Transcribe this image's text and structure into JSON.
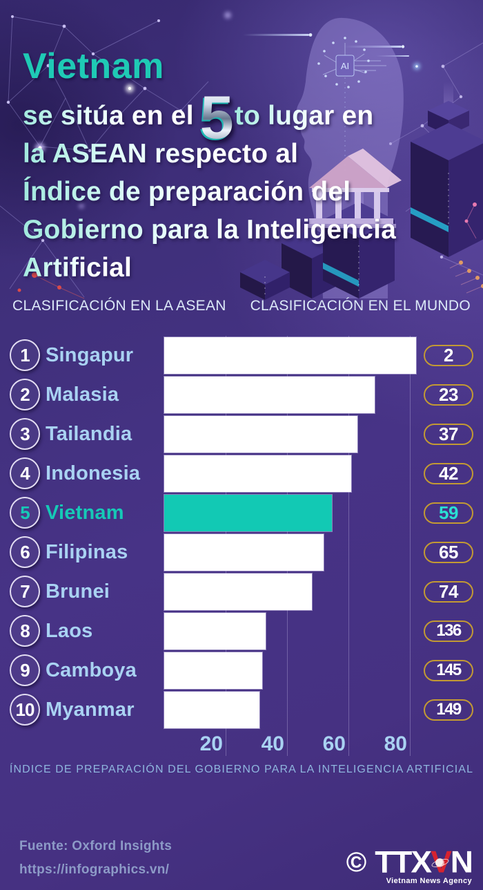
{
  "header": {
    "highlight": "Vietnam",
    "line1_pre": "se sitúa en el",
    "big_number": "5",
    "line1_post": "to lugar en",
    "line2": "la ASEAN respecto al",
    "line3": "Índice de preparación del",
    "line4": "Gobierno para la Inteligencia",
    "line5": "Artificial",
    "ai_chip_label": "AI"
  },
  "columns": {
    "left": "CLASIFICACIÓN EN LA ASEAN",
    "right": "CLASIFICACIÓN EN EL MUNDO"
  },
  "chart_data": {
    "type": "bar",
    "orientation": "horizontal",
    "title": "Vietnam se sitúa en el 5to lugar en la ASEAN respecto al Índice de preparación del Gobierno para la Inteligencia Artificial",
    "xlabel": "ÍNDICE DE PREPARACIÓN DEL GOBIERNO PARA LA INTELIGENCIA ARTIFICIAL",
    "x_ticks": [
      20,
      40,
      60,
      80
    ],
    "xlim": [
      0,
      82.5
    ],
    "grid": true,
    "categories": [
      "Singapur",
      "Malasia",
      "Tailandia",
      "Indonesia",
      "Vietnam",
      "Filipinas",
      "Brunei",
      "Laos",
      "Camboya",
      "Myanmar"
    ],
    "asean_ranks": [
      1,
      2,
      3,
      4,
      5,
      6,
      7,
      8,
      9,
      10
    ],
    "values": [
      82,
      68.5,
      63,
      61,
      54.5,
      52,
      48,
      33,
      32,
      31
    ],
    "world_ranks": [
      2,
      23,
      37,
      42,
      59,
      65,
      74,
      136,
      145,
      149
    ],
    "highlight_category": "Vietnam",
    "bar_color": "#ffffff",
    "highlight_color": "#12c9b4"
  },
  "footer": {
    "source": "Fuente: Oxford Insights",
    "url": "https://infographics.vn/",
    "copyright": "©",
    "logo_ttx": "TTX",
    "logo_v": "V",
    "logo_n": "N",
    "logo_sub": "Vietnam News Agency"
  },
  "colors": {
    "background_purple": "#473386",
    "accent_teal": "#14c9b5",
    "label_blue": "#a9d2f2",
    "pill_border_gold": "#c39a33",
    "axis_text_blue": "#8fb6de",
    "footer_text": "#8d9bc7",
    "logo_red": "#d6232f"
  }
}
